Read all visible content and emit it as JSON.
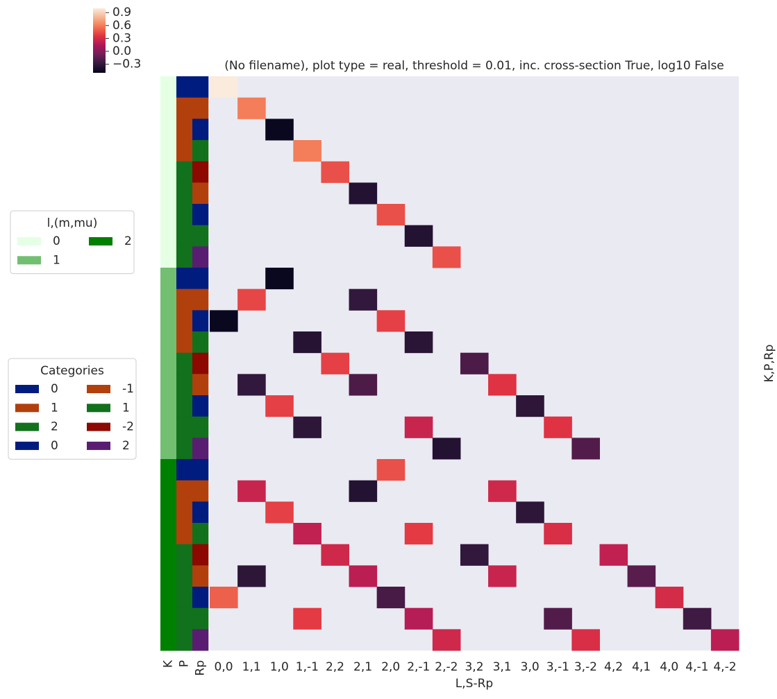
{
  "chart_data": {
    "type": "heatmap",
    "title": "(No filename), plot type = real, threshold = 0.01, inc. cross-section True, log10 False",
    "xlabel": "L,S-Rp",
    "ylabel": "K,P,Rp",
    "colormap": "rocket",
    "missing_color": "#eaeaf2",
    "categories": [
      "0,0",
      "1,1",
      "1,0",
      "1,-1",
      "2,2",
      "2,1",
      "2,0",
      "2,-1",
      "2,-2",
      "3,2",
      "3,1",
      "3,0",
      "3,-1",
      "3,-2",
      "4,2",
      "4,1",
      "4,0",
      "4,-1",
      "4,-2"
    ],
    "values": [
      [
        1.0,
        null,
        null,
        null,
        null,
        null,
        null,
        null,
        null,
        null,
        null,
        null,
        null,
        null,
        null,
        null,
        null,
        null,
        null
      ],
      [
        null,
        0.6,
        null,
        null,
        null,
        null,
        null,
        null,
        null,
        null,
        null,
        null,
        null,
        null,
        null,
        null,
        null,
        null,
        null
      ],
      [
        null,
        null,
        -0.47,
        null,
        null,
        null,
        null,
        null,
        null,
        null,
        null,
        null,
        null,
        null,
        null,
        null,
        null,
        null,
        null
      ],
      [
        null,
        null,
        null,
        0.6,
        null,
        null,
        null,
        null,
        null,
        null,
        null,
        null,
        null,
        null,
        null,
        null,
        null,
        null,
        null
      ],
      [
        null,
        null,
        null,
        null,
        0.45,
        null,
        null,
        null,
        null,
        null,
        null,
        null,
        null,
        null,
        null,
        null,
        null,
        null,
        null
      ],
      [
        null,
        null,
        null,
        null,
        null,
        -0.36,
        null,
        null,
        null,
        null,
        null,
        null,
        null,
        null,
        null,
        null,
        null,
        null,
        null
      ],
      [
        null,
        null,
        null,
        null,
        null,
        null,
        0.45,
        null,
        null,
        null,
        null,
        null,
        null,
        null,
        null,
        null,
        null,
        null,
        null
      ],
      [
        null,
        null,
        null,
        null,
        null,
        null,
        null,
        -0.36,
        null,
        null,
        null,
        null,
        null,
        null,
        null,
        null,
        null,
        null,
        null
      ],
      [
        null,
        null,
        null,
        null,
        null,
        null,
        null,
        null,
        0.45,
        null,
        null,
        null,
        null,
        null,
        null,
        null,
        null,
        null,
        null
      ],
      [
        null,
        null,
        -0.47,
        null,
        null,
        null,
        null,
        null,
        null,
        null,
        null,
        null,
        null,
        null,
        null,
        null,
        null,
        null,
        null
      ],
      [
        null,
        0.42,
        null,
        null,
        null,
        -0.3,
        null,
        null,
        null,
        null,
        null,
        null,
        null,
        null,
        null,
        null,
        null,
        null,
        null
      ],
      [
        -0.47,
        null,
        null,
        null,
        null,
        null,
        0.4,
        null,
        null,
        null,
        null,
        null,
        null,
        null,
        null,
        null,
        null,
        null,
        null
      ],
      [
        null,
        null,
        null,
        -0.35,
        null,
        null,
        null,
        -0.33,
        null,
        null,
        null,
        null,
        null,
        null,
        null,
        null,
        null,
        null,
        null
      ],
      [
        null,
        null,
        null,
        null,
        0.4,
        null,
        null,
        null,
        null,
        -0.2,
        null,
        null,
        null,
        null,
        null,
        null,
        null,
        null,
        null
      ],
      [
        null,
        -0.3,
        null,
        null,
        null,
        -0.2,
        null,
        null,
        null,
        null,
        0.35,
        null,
        null,
        null,
        null,
        null,
        null,
        null,
        null
      ],
      [
        null,
        null,
        0.4,
        null,
        null,
        null,
        null,
        null,
        null,
        null,
        null,
        -0.32,
        null,
        null,
        null,
        null,
        null,
        null,
        null
      ],
      [
        null,
        null,
        null,
        -0.32,
        null,
        null,
        null,
        0.25,
        null,
        null,
        null,
        null,
        0.35,
        null,
        null,
        null,
        null,
        null,
        null
      ],
      [
        null,
        null,
        null,
        null,
        null,
        null,
        null,
        null,
        -0.36,
        null,
        null,
        null,
        null,
        -0.18,
        null,
        null,
        null,
        null,
        null
      ],
      [
        null,
        null,
        null,
        null,
        null,
        null,
        0.45,
        null,
        null,
        null,
        null,
        null,
        null,
        null,
        null,
        null,
        null,
        null,
        null
      ],
      [
        null,
        0.25,
        null,
        null,
        null,
        -0.36,
        null,
        null,
        null,
        null,
        0.28,
        null,
        null,
        null,
        null,
        null,
        null,
        null,
        null
      ],
      [
        null,
        null,
        0.4,
        null,
        null,
        null,
        null,
        null,
        null,
        null,
        null,
        -0.32,
        null,
        null,
        null,
        null,
        null,
        null,
        null
      ],
      [
        null,
        null,
        null,
        0.22,
        null,
        null,
        null,
        0.38,
        null,
        null,
        null,
        null,
        0.32,
        null,
        null,
        null,
        null,
        null,
        null
      ],
      [
        null,
        null,
        null,
        null,
        0.28,
        null,
        null,
        null,
        null,
        -0.3,
        null,
        null,
        null,
        null,
        0.22,
        null,
        null,
        null,
        null
      ],
      [
        null,
        -0.32,
        null,
        null,
        null,
        0.2,
        null,
        null,
        null,
        null,
        0.25,
        null,
        null,
        null,
        null,
        -0.16,
        null,
        null,
        null
      ],
      [
        0.5,
        null,
        null,
        null,
        null,
        null,
        -0.22,
        null,
        null,
        null,
        null,
        null,
        null,
        null,
        null,
        null,
        0.3,
        null,
        null
      ],
      [
        null,
        null,
        null,
        0.38,
        null,
        null,
        null,
        0.18,
        null,
        null,
        null,
        null,
        -0.18,
        null,
        null,
        null,
        null,
        -0.25,
        null
      ],
      [
        null,
        null,
        null,
        null,
        null,
        null,
        null,
        null,
        0.28,
        null,
        null,
        null,
        null,
        0.32,
        null,
        null,
        null,
        null,
        0.2
      ]
    ],
    "clim": [
      -0.5,
      1.0
    ],
    "cticks": [
      0.9,
      0.6,
      0.3,
      {
        "value": 0,
        "label": "0.0"
      },
      {
        "value": -0.3,
        "label": "−0.3"
      }
    ],
    "row_colors": [
      {
        "name": "K",
        "levels": [
          0,
          1,
          2
        ],
        "colors": [
          "#e5ffe5",
          "#72bf72",
          "#008000"
        ],
        "values": [
          0,
          0,
          0,
          0,
          0,
          0,
          0,
          0,
          0,
          1,
          1,
          1,
          1,
          1,
          1,
          1,
          1,
          1,
          2,
          2,
          2,
          2,
          2,
          2,
          2,
          2,
          2
        ]
      },
      {
        "name": "P",
        "levels": [
          0,
          1,
          2
        ],
        "colors": [
          "#001c7f",
          "#b1400d",
          "#12711c"
        ],
        "values": [
          0,
          1,
          1,
          1,
          2,
          2,
          2,
          2,
          2,
          0,
          1,
          1,
          1,
          2,
          2,
          2,
          2,
          2,
          0,
          1,
          1,
          1,
          2,
          2,
          2,
          2,
          2
        ]
      },
      {
        "name": "Rp",
        "levels": [
          0,
          -1,
          1,
          -2,
          2
        ],
        "colors": [
          "#001c7f",
          "#b1400d",
          "#12711c",
          "#8c0800",
          "#591e71"
        ],
        "values": [
          0,
          -1,
          0,
          1,
          -2,
          -1,
          0,
          1,
          2,
          0,
          -1,
          0,
          1,
          -2,
          -1,
          0,
          1,
          2,
          0,
          -1,
          0,
          1,
          -2,
          -1,
          0,
          1,
          2
        ]
      }
    ],
    "legends": [
      {
        "title": "l,(m,mu)"
      },
      {
        "title": "Categories"
      }
    ]
  }
}
